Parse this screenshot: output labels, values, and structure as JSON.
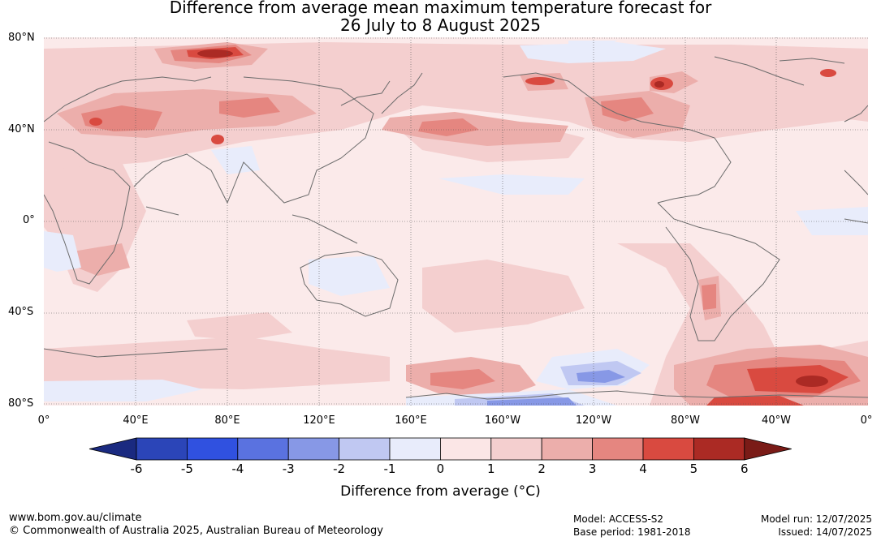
{
  "title": {
    "line1": "Difference from average mean maximum temperature forecast for",
    "line2": "26 July to 8 August 2025"
  },
  "map": {
    "lat_labels": [
      "80°N",
      "40°N",
      "0°",
      "40°S",
      "80°S"
    ],
    "lon_labels": [
      "0°",
      "40°E",
      "80°E",
      "120°E",
      "160°E",
      "160°W",
      "120°W",
      "80°W",
      "40°W",
      "0°"
    ],
    "colors": {
      "ocean_base": "#fbeaea",
      "coast": "#6b6b6b",
      "grid": "#555555"
    }
  },
  "colorbar": {
    "ticks": [
      "-6",
      "-5",
      "-4",
      "-3",
      "-2",
      "-1",
      "0",
      "1",
      "2",
      "3",
      "4",
      "5",
      "6"
    ],
    "colors": [
      "#1a2a80",
      "#2b45b8",
      "#3051e0",
      "#5a72e0",
      "#8798e6",
      "#c0c8f2",
      "#e8ecfb",
      "#fbe6e6",
      "#f4cfcf",
      "#ecaeab",
      "#e58680",
      "#d94a40",
      "#ab2a24",
      "#7a1b17"
    ],
    "label": "Difference from average (°C)"
  },
  "footer": {
    "url": "www.bom.gov.au/climate",
    "copyright": "© Commonwealth of Australia 2025, Australian Bureau of Meteorology",
    "model": "Model: ACCESS-S2",
    "base_period": "Base period: 1981-2018",
    "model_run": "Model run: 12/07/2025",
    "issued": "Issued: 14/07/2025"
  }
}
